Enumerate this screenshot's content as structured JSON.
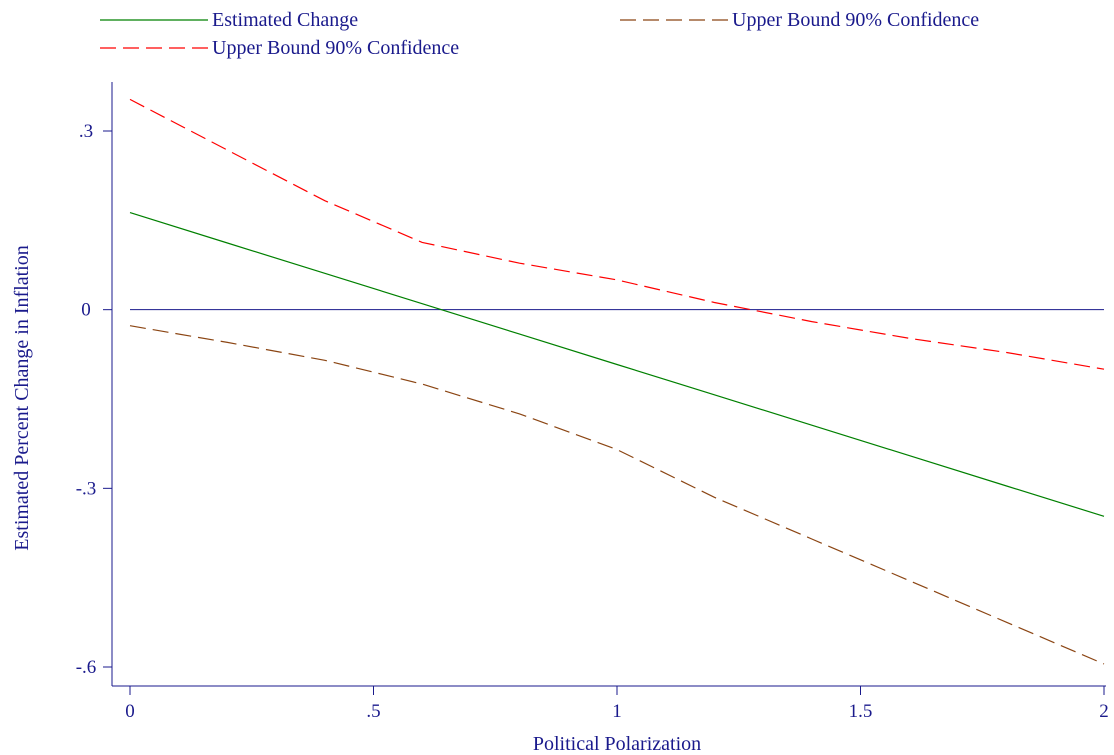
{
  "chart_data": {
    "type": "line",
    "title": "",
    "xlabel": "Political Polarization",
    "ylabel": "Estimated Percent Change in Inflation",
    "xlim": [
      0,
      2
    ],
    "ylim": [
      -0.6,
      0.3
    ],
    "xticks": [
      {
        "value": 0,
        "label": "0"
      },
      {
        "value": 0.5,
        "label": ".5"
      },
      {
        "value": 1,
        "label": "1"
      },
      {
        "value": 1.5,
        "label": "1.5"
      },
      {
        "value": 2,
        "label": "2"
      }
    ],
    "yticks": [
      {
        "value": 0.3,
        "label": ".3"
      },
      {
        "value": 0,
        "label": "0"
      },
      {
        "value": -0.3,
        "label": "-.3"
      },
      {
        "value": -0.6,
        "label": "-.6"
      }
    ],
    "reference_line": {
      "y": 0,
      "color": "#1a1a8c"
    },
    "legend_position": "top",
    "x": [
      0,
      0.2,
      0.4,
      0.6,
      0.8,
      1.0,
      1.2,
      1.4,
      1.6,
      1.8,
      2.0
    ],
    "series": [
      {
        "name": "Estimated Change",
        "color": "#008000",
        "dash": "solid",
        "values": [
          0.163,
          0.112,
          0.061,
          0.01,
          -0.041,
          -0.092,
          -0.143,
          -0.194,
          -0.245,
          -0.296,
          -0.347
        ]
      },
      {
        "name": "Upper Bound 90% Confidence",
        "color": "#8b4513",
        "dash": "dashed",
        "values": [
          -0.027,
          -0.055,
          -0.085,
          -0.125,
          -0.175,
          -0.235,
          -0.315,
          -0.385,
          -0.455,
          -0.525,
          -0.595
        ]
      },
      {
        "name": "Upper Bound 90% Confidence",
        "color": "#ff0000",
        "dash": "dashed",
        "values": [
          0.353,
          0.268,
          0.183,
          0.113,
          0.078,
          0.05,
          0.012,
          -0.02,
          -0.048,
          -0.072,
          -0.1
        ]
      }
    ]
  }
}
